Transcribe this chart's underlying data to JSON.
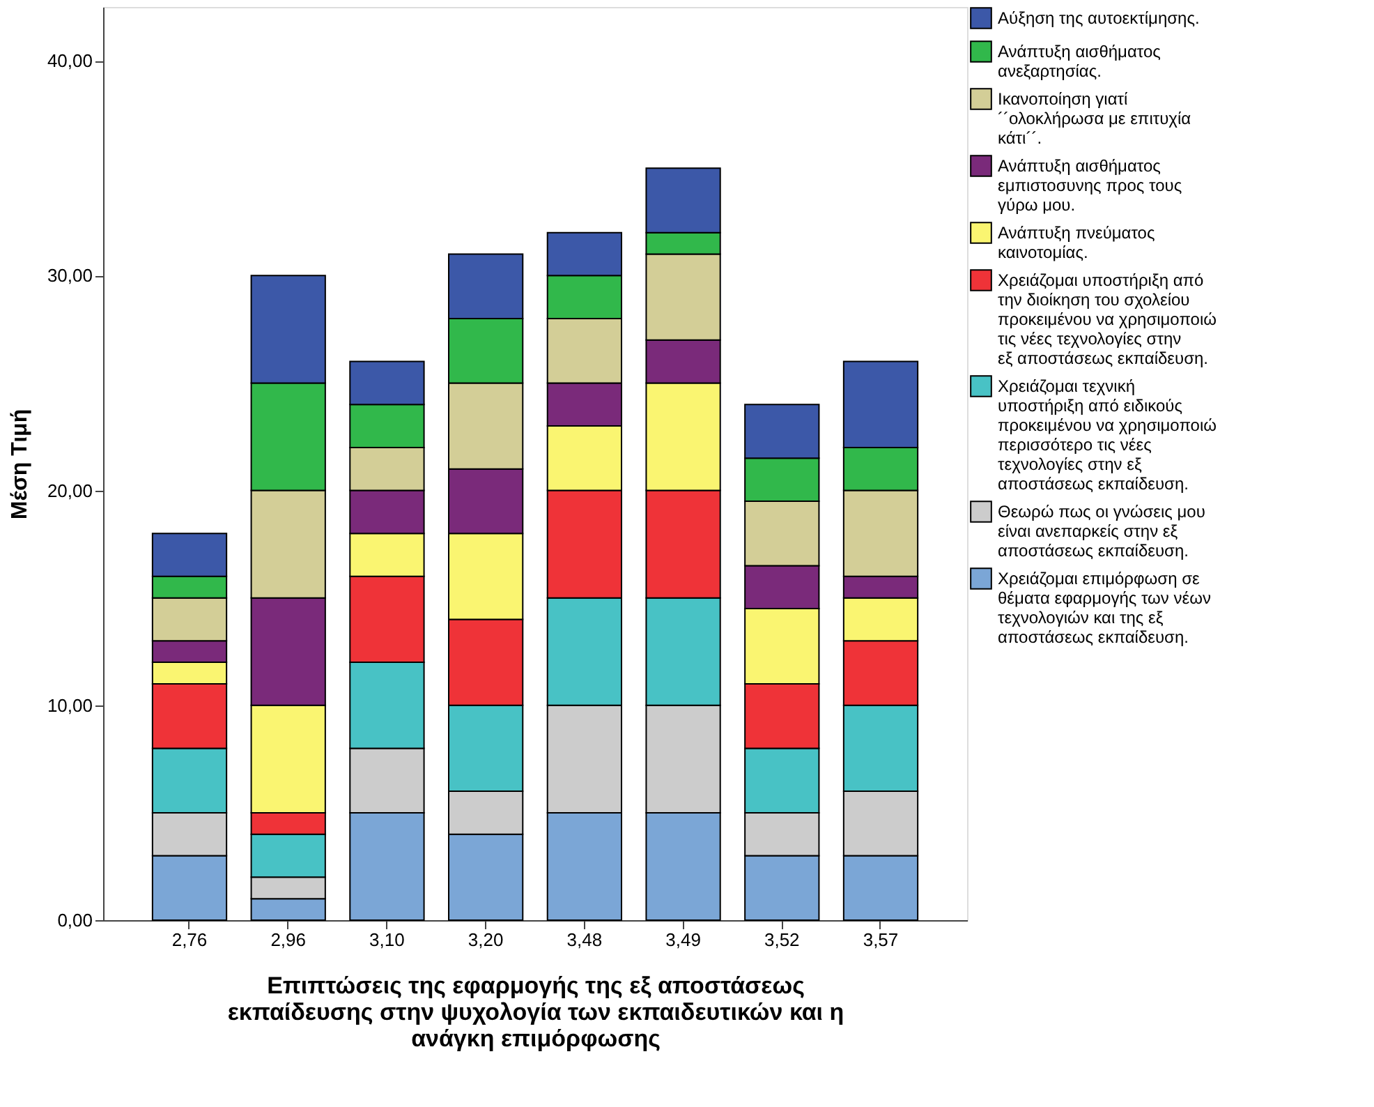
{
  "chart_data": {
    "type": "bar",
    "stacked": true,
    "xlabel": "Επιπτώσεις της εφαρμογής της εξ αποστάσεως εκπαίδευσης στην ψυχολογία των εκπαιδευτικών και η ανάγκη επιμόρφωσης",
    "ylabel": "Μέση Τιμή",
    "categories": [
      "2,76",
      "2,96",
      "3,10",
      "3,20",
      "3,48",
      "3,49",
      "3,52",
      "3,57"
    ],
    "ylim": [
      0,
      42.5
    ],
    "yticks": [
      {
        "value": 0,
        "label": "0,00"
      },
      {
        "value": 10,
        "label": "10,00"
      },
      {
        "value": 20,
        "label": "20,00"
      },
      {
        "value": 30,
        "label": "30,00"
      },
      {
        "value": 40,
        "label": "40,00"
      }
    ],
    "legend": "top right",
    "grid": false,
    "series": [
      {
        "name": "Χρειάζομαι επιμόρφωση σε θέματα εφαρμογής των νέων τεχνολογιών και της εξ αποστάσεως εκπαίδευση.",
        "color": "#7ba6d6",
        "values": [
          3,
          1,
          5,
          4,
          5,
          5,
          3,
          3
        ]
      },
      {
        "name": "Θεωρώ πως οι γνώσεις μου είναι ανεπαρκείς στην εξ αποστάσεως εκπαίδευση.",
        "color": "#cccccc",
        "values": [
          2,
          1,
          3,
          2,
          5,
          5,
          2,
          3
        ]
      },
      {
        "name": "Χρειάζομαι τεχνική υποστήριξη από ειδικούς προκειμένου να χρησιμοποιώ περισσότερο τις νέες τεχνολογίες στην εξ αποστάσεως εκπαίδευση.",
        "color": "#48c2c5",
        "values": [
          3,
          2,
          4,
          4,
          5,
          5,
          3,
          4
        ]
      },
      {
        "name": "Χρειάζομαι υποστήριξη από την διοίκηση του σχολείου προκειμένου να χρησιμοποιώ τις νέες τεχνολογίες στην εξ αποστάσεως εκπαίδευση.",
        "color": "#ef3338",
        "values": [
          3,
          1,
          4,
          4,
          5,
          5,
          3,
          3
        ]
      },
      {
        "name": "Ανάπτυξη πνεύματος καινοτομίας.",
        "color": "#faf571",
        "values": [
          1,
          5,
          2,
          4,
          3,
          5,
          3.5,
          2
        ]
      },
      {
        "name": "Ανάπτυξη αισθήματος εμπιστοσυνης προς τους γύρω μου.",
        "color": "#7a2a7a",
        "values": [
          1,
          5,
          2,
          3,
          2,
          2,
          2,
          1
        ]
      },
      {
        "name": "Ικανοποίηση γιατί ´´ολοκλήρωσα με επιτυχία κάτι´´.",
        "color": "#d3ce97",
        "values": [
          2,
          5,
          2,
          4,
          3,
          4,
          3,
          4
        ]
      },
      {
        "name": "Ανάπτυξη αισθήματος ανεξαρτησίας.",
        "color": "#31b84b",
        "values": [
          1,
          5,
          2,
          3,
          2,
          1,
          2,
          2
        ]
      },
      {
        "name": "Αύξηση της αυτοεκτίμησης.",
        "color": "#3c58a8",
        "values": [
          2,
          5,
          2,
          3,
          2,
          3,
          2.5,
          4
        ]
      }
    ]
  }
}
